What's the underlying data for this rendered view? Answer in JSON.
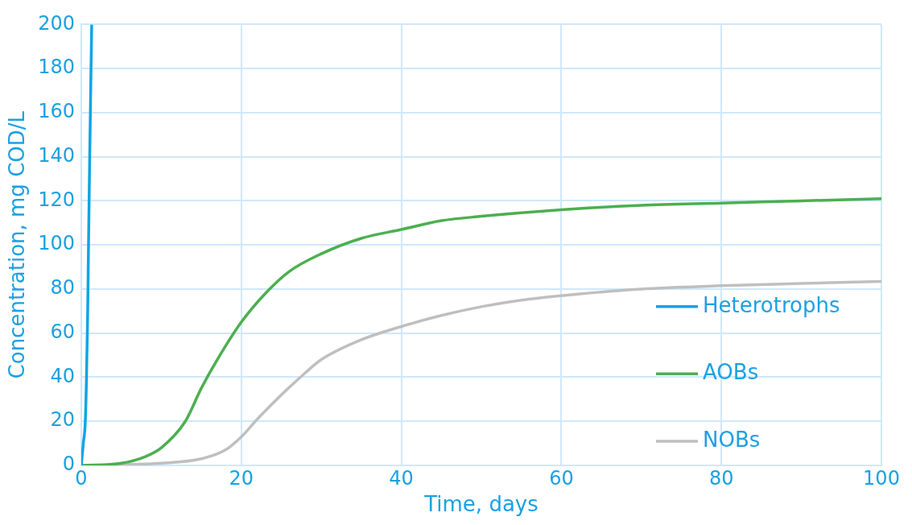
{
  "chart_data": {
    "type": "line",
    "xlabel": "Time, days",
    "ylabel": "Concentration, mg COD/L",
    "xlim": [
      0,
      100
    ],
    "xticks": [
      0,
      20,
      40,
      60,
      80,
      100
    ],
    "ylim": [
      0,
      200
    ],
    "yticks": [
      0,
      20,
      40,
      60,
      80,
      100,
      120,
      140,
      160,
      180,
      200
    ],
    "grid": true,
    "legend": "right",
    "marker": "none",
    "line_style": "solid",
    "series": [
      {
        "name": "Heterotrophs",
        "color": "#0ea5e4",
        "x": [
          0,
          0.25,
          0.5,
          0.65,
          0.8,
          0.9,
          1.05,
          1.3
        ],
        "values": [
          0,
          10,
          20,
          40,
          70,
          100,
          140,
          200
        ]
      },
      {
        "name": "AOBs",
        "color": "#4caf50",
        "x": [
          0,
          5,
          8,
          10,
          13,
          15,
          17,
          20,
          23,
          26,
          30,
          35,
          40,
          45,
          50,
          60,
          70,
          80,
          90,
          100
        ],
        "values": [
          0,
          1,
          4,
          8,
          20,
          35,
          48,
          65,
          78,
          88,
          96,
          103,
          107,
          111,
          113,
          116,
          118,
          119,
          120,
          121
        ]
      },
      {
        "name": "NOBs",
        "color": "#bfbfbf",
        "x": [
          0,
          10,
          15,
          18,
          20,
          22,
          25,
          28,
          30,
          35,
          40,
          45,
          50,
          55,
          60,
          70,
          80,
          90,
          100
        ],
        "values": [
          0,
          1,
          3,
          7,
          13,
          21,
          32,
          42,
          48,
          57,
          63,
          68,
          72,
          75,
          77,
          80,
          81.5,
          82.5,
          83.5
        ]
      }
    ]
  }
}
